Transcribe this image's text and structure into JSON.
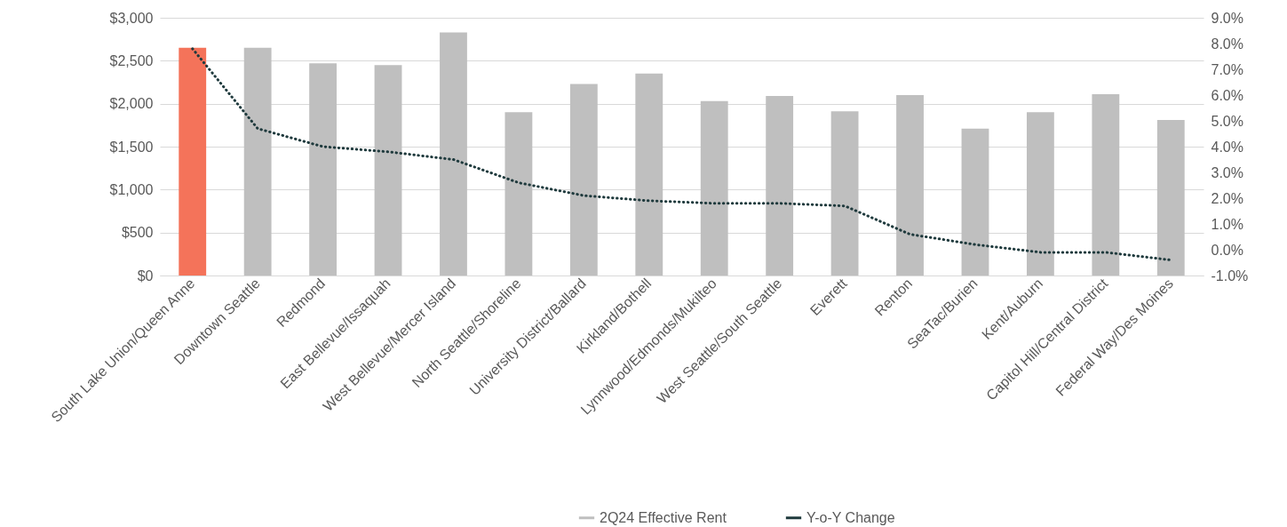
{
  "chart_data": {
    "type": "bar",
    "categories": [
      "South Lake Union/Queen Anne",
      "Downtown Seattle",
      "Redmond",
      "East Bellevue/Issaquah",
      "West Bellevue/Mercer Island",
      "North Seattle/Shoreline",
      "University District/Ballard",
      "Kirkland/Bothell",
      "Lynnwood/Edmonds/Mukilteo",
      "West Seattle/South Seattle",
      "Everett",
      "Renton",
      "SeaTac/Burien",
      "Kent/Auburn",
      "Capitol Hill/Central District",
      "Federal Way/Des Moines"
    ],
    "series": [
      {
        "name": "2Q24 Effective Rent",
        "color": "#bfbfbf",
        "colors": [
          "#f4735a",
          "#bfbfbf",
          "#bfbfbf",
          "#bfbfbf",
          "#bfbfbf",
          "#bfbfbf",
          "#bfbfbf",
          "#bfbfbf",
          "#bfbfbf",
          "#bfbfbf",
          "#bfbfbf",
          "#bfbfbf",
          "#bfbfbf",
          "#bfbfbf",
          "#bfbfbf",
          "#bfbfbf"
        ],
        "values": [
          2650,
          2650,
          2470,
          2450,
          2830,
          1900,
          2230,
          2350,
          2030,
          2090,
          1910,
          2100,
          1710,
          1900,
          2110,
          1810
        ]
      },
      {
        "name": "Y-o-Y Change",
        "type": "line",
        "axis": "y2",
        "color": "#1f3a3d",
        "line_style": "dotted",
        "values": [
          7.8,
          4.7,
          4.0,
          3.8,
          3.5,
          2.6,
          2.1,
          1.9,
          1.8,
          1.8,
          1.7,
          0.6,
          0.2,
          -0.1,
          -0.1,
          -0.4
        ]
      }
    ],
    "ylim": [
      0,
      3000
    ],
    "yticks": [
      {
        "value": 0,
        "label": "$0"
      },
      {
        "value": 500,
        "label": "$500"
      },
      {
        "value": 1000,
        "label": "$1,000"
      },
      {
        "value": 1500,
        "label": "$1,500"
      },
      {
        "value": 2000,
        "label": "$2,000"
      },
      {
        "value": 2500,
        "label": "$2,500"
      },
      {
        "value": 3000,
        "label": "$3,000"
      }
    ],
    "y2lim": [
      -1,
      9
    ],
    "y2ticks": [
      {
        "value": -1,
        "label": "-1.0%"
      },
      {
        "value": 0,
        "label": "0.0%"
      },
      {
        "value": 1,
        "label": "1.0%"
      },
      {
        "value": 2,
        "label": "2.0%"
      },
      {
        "value": 3,
        "label": "3.0%"
      },
      {
        "value": 4,
        "label": "4.0%"
      },
      {
        "value": 5,
        "label": "5.0%"
      },
      {
        "value": 6,
        "label": "6.0%"
      },
      {
        "value": 7,
        "label": "7.0%"
      },
      {
        "value": 8,
        "label": "8.0%"
      },
      {
        "value": 9,
        "label": "9.0%"
      }
    ],
    "grid": "y",
    "legend": "bottom"
  }
}
